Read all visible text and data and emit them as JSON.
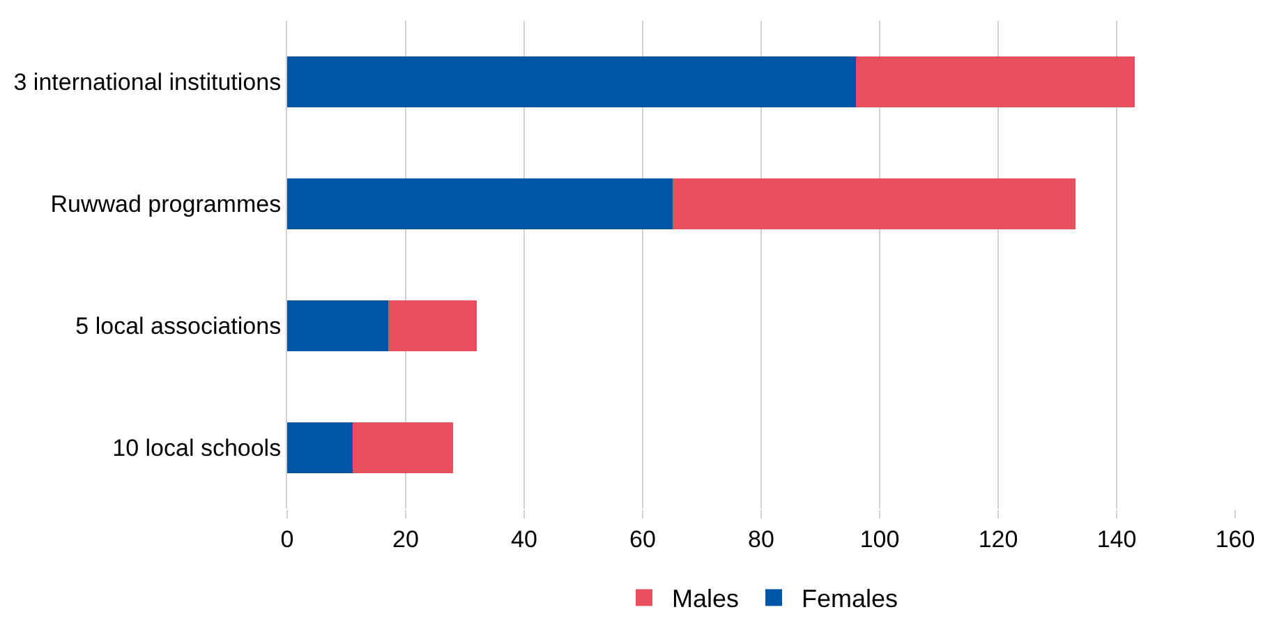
{
  "chart_data": {
    "type": "bar",
    "orientation": "horizontal",
    "stacked": true,
    "categories": [
      "3 international institutions",
      "Ruwwad programmes",
      "5 local associations",
      "10 local schools"
    ],
    "series": [
      {
        "name": "Females",
        "color": "#0054a6",
        "values": [
          96,
          65,
          17,
          11
        ]
      },
      {
        "name": "Males",
        "color": "#e84e5e",
        "values": [
          47,
          68,
          15,
          17
        ]
      }
    ],
    "xlim": [
      0,
      160
    ],
    "xticks": [
      0,
      20,
      40,
      60,
      80,
      100,
      120,
      140,
      160
    ],
    "grid": "x",
    "legend": "bottom"
  }
}
